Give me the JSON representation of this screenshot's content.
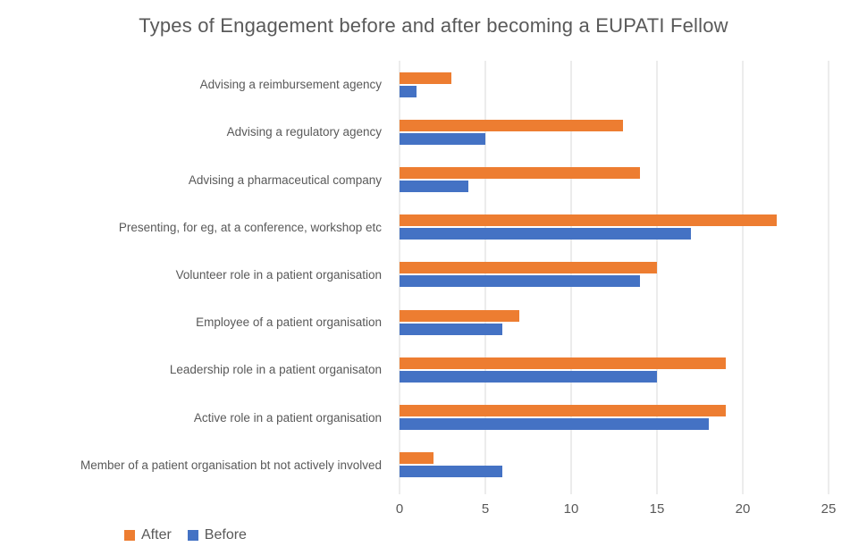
{
  "chart_data": {
    "type": "bar",
    "orientation": "horizontal",
    "title": "Types of Engagement before and after becoming a EUPATI Fellow",
    "categories": [
      "Advising a reimbursement agency",
      "Advising a regulatory agency",
      "Advising a pharmaceutical company",
      "Presenting, for eg, at a conference, workshop etc",
      "Volunteer role in a patient organisation",
      "Employee of a patient organisation",
      "Leadership role in a patient organisaton",
      "Active role in a patient organisation",
      "Member of a patient organisation bt not actively involved"
    ],
    "series": [
      {
        "name": "After",
        "color": "#ED7D31",
        "values": [
          3,
          13,
          14,
          22,
          15,
          7,
          19,
          19,
          2
        ]
      },
      {
        "name": "Before",
        "color": "#4472C4",
        "values": [
          1,
          5,
          4,
          17,
          14,
          6,
          15,
          18,
          6
        ]
      }
    ],
    "x_ticks": [
      0,
      5,
      10,
      15,
      20,
      25
    ],
    "xlim": [
      0,
      25
    ],
    "xlabel": "",
    "ylabel": "",
    "grid": "vertical-only",
    "legend_position": "bottom-left"
  },
  "colors": {
    "grid_line": "#d9d9d9",
    "text_gray": "#595959",
    "background": "#ffffff"
  }
}
